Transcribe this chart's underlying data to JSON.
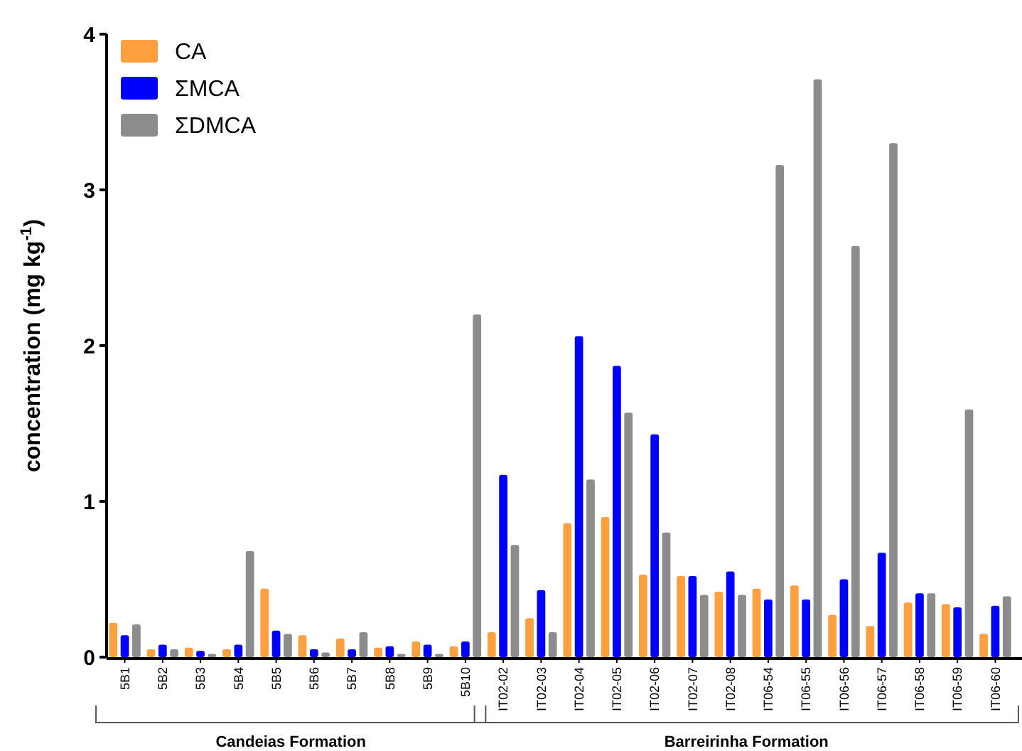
{
  "chart_data": {
    "type": "bar",
    "ylabel": "concentration (mg kg$^{-1}$)",
    "categories": [
      "5B1",
      "5B2",
      "5B3",
      "5B4",
      "5B5",
      "5B6",
      "5B7",
      "5B8",
      "5B9",
      "5B10",
      "IT02-02",
      "IT02-03",
      "IT02-04",
      "IT02-05",
      "IT02-06",
      "IT02-07",
      "IT02-08",
      "IT06-54",
      "IT06-55",
      "IT06-56",
      "IT06-57",
      "IT06-58",
      "IT06-59",
      "IT06-60"
    ],
    "series": [
      {
        "name": "CA",
        "color": "#ffa040",
        "values": [
          0.22,
          0.05,
          0.06,
          0.05,
          0.44,
          0.14,
          0.12,
          0.06,
          0.1,
          0.07,
          0.16,
          0.25,
          0.86,
          0.9,
          0.53,
          0.52,
          0.42,
          0.44,
          0.46,
          0.27,
          0.2,
          0.35,
          0.34,
          0.15
        ]
      },
      {
        "name": "ΣMCA",
        "color": "#0000ff",
        "values": [
          0.14,
          0.08,
          0.04,
          0.08,
          0.17,
          0.05,
          0.05,
          0.07,
          0.08,
          0.1,
          1.17,
          0.43,
          2.06,
          1.87,
          1.43,
          0.52,
          0.55,
          0.37,
          0.37,
          0.5,
          0.67,
          0.41,
          0.32,
          0.33
        ]
      },
      {
        "name": "ΣDMCA",
        "color": "#8c8c8c",
        "values": [
          0.21,
          0.05,
          0.02,
          0.68,
          0.15,
          0.03,
          0.16,
          0.02,
          0.02,
          2.2,
          0.72,
          0.16,
          1.14,
          1.57,
          0.8,
          0.4,
          0.4,
          3.16,
          3.71,
          2.64,
          3.3,
          0.41,
          1.59,
          0.39
        ]
      }
    ],
    "ylim": [
      0,
      4
    ],
    "yticks": [
      0,
      1,
      2,
      3,
      4
    ],
    "grid": false,
    "legend": "top left",
    "annotations": [
      "Candeias Formation",
      "Barreirinha Formation"
    ]
  }
}
